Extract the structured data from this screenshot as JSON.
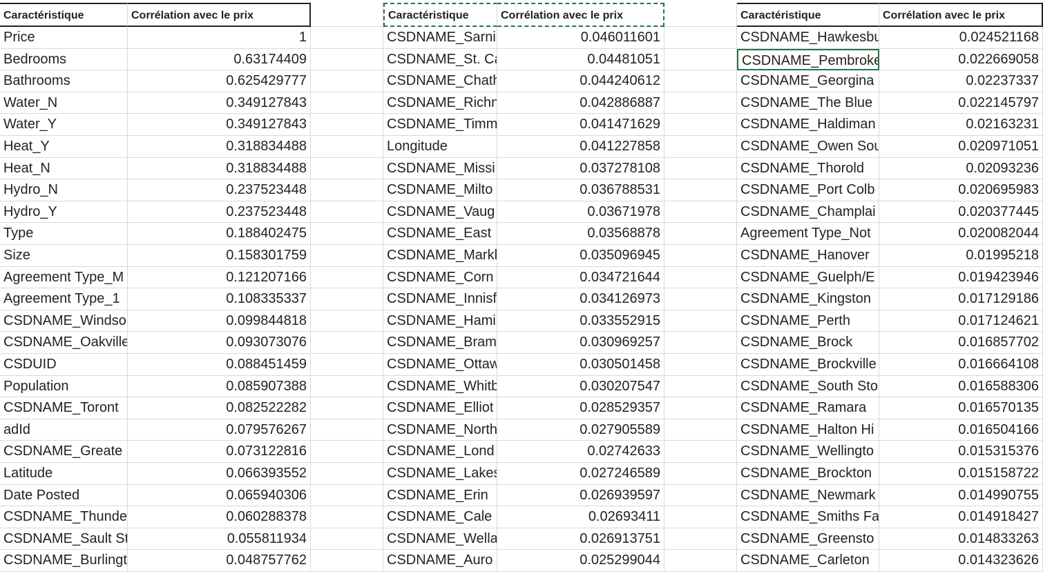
{
  "tables": [
    {
      "header": [
        "Caractéristique",
        "Corrélation avec le prix"
      ],
      "rows": [
        [
          "Price",
          "1"
        ],
        [
          "Bedrooms",
          "0.63174409"
        ],
        [
          "Bathrooms",
          "0.625429777"
        ],
        [
          "Water_N",
          "0.349127843"
        ],
        [
          "Water_Y",
          "0.349127843"
        ],
        [
          "Heat_Y",
          "0.318834488"
        ],
        [
          "Heat_N",
          "0.318834488"
        ],
        [
          "Hydro_N",
          "0.237523448"
        ],
        [
          "Hydro_Y",
          "0.237523448"
        ],
        [
          "Type",
          "0.188402475"
        ],
        [
          "Size",
          "0.158301759"
        ],
        [
          "Agreement Type_M",
          "0.121207166"
        ],
        [
          "Agreement Type_1",
          "0.108335337"
        ],
        [
          "CSDNAME_Windso",
          "0.099844818"
        ],
        [
          "CSDNAME_Oakville",
          "0.093073076"
        ],
        [
          "CSDUID",
          "0.088451459"
        ],
        [
          "Population",
          "0.085907388"
        ],
        [
          "CSDNAME_Toront",
          "0.082522282"
        ],
        [
          "adId",
          "0.079576267"
        ],
        [
          "CSDNAME_Greate",
          "0.073122816"
        ],
        [
          "Latitude",
          "0.066393552"
        ],
        [
          "Date Posted",
          "0.065940306"
        ],
        [
          "CSDNAME_Thunde",
          "0.060288378"
        ],
        [
          "CSDNAME_Sault St",
          "0.055811934"
        ],
        [
          "CSDNAME_Burlingt",
          "0.048757762"
        ]
      ]
    },
    {
      "header": [
        "Caractéristique",
        "Corrélation avec le prix"
      ],
      "rows": [
        [
          "CSDNAME_Sarni",
          "0.046011601"
        ],
        [
          "CSDNAME_St. Ca",
          "0.04481051"
        ],
        [
          "CSDNAME_Chath",
          "0.044240612"
        ],
        [
          "CSDNAME_Richn",
          "0.042886887"
        ],
        [
          "CSDNAME_Timm",
          "0.041471629"
        ],
        [
          "Longitude",
          "0.041227858"
        ],
        [
          "CSDNAME_Missi",
          "0.037278108"
        ],
        [
          "CSDNAME_Milto",
          "0.036788531"
        ],
        [
          "CSDNAME_Vaug",
          "0.03671978"
        ],
        [
          "CSDNAME_East",
          "0.03568878"
        ],
        [
          "CSDNAME_Markl",
          "0.035096945"
        ],
        [
          "CSDNAME_Corn",
          "0.034721644"
        ],
        [
          "CSDNAME_Innisf",
          "0.034126973"
        ],
        [
          "CSDNAME_Hami",
          "0.033552915"
        ],
        [
          "CSDNAME_Bram",
          "0.030969257"
        ],
        [
          "CSDNAME_Ottaw",
          "0.030501458"
        ],
        [
          "CSDNAME_Whitb",
          "0.030207547"
        ],
        [
          "CSDNAME_Elliot",
          "0.028529357"
        ],
        [
          "CSDNAME_North",
          "0.027905589"
        ],
        [
          "CSDNAME_Lond",
          "0.02742633"
        ],
        [
          "CSDNAME_Lakes",
          "0.027246589"
        ],
        [
          "CSDNAME_Erin",
          "0.026939597"
        ],
        [
          "CSDNAME_Cale",
          "0.02693411"
        ],
        [
          "CSDNAME_Wella",
          "0.026913751"
        ],
        [
          "CSDNAME_Auro",
          "0.025299044"
        ]
      ]
    },
    {
      "header": [
        "Caractéristique",
        "Corrélation avec le prix"
      ],
      "rows": [
        [
          "CSDNAME_Hawkesbu",
          "0.024521168"
        ],
        [
          "CSDNAME_Pembroke",
          "0.022669058"
        ],
        [
          "CSDNAME_Georgina",
          "0.02237337"
        ],
        [
          "CSDNAME_The Blue",
          "0.022145797"
        ],
        [
          "CSDNAME_Haldiman",
          "0.02163231"
        ],
        [
          "CSDNAME_Owen Sou",
          "0.020971051"
        ],
        [
          "CSDNAME_Thorold",
          "0.02093236"
        ],
        [
          "CSDNAME_Port Colb",
          "0.020695983"
        ],
        [
          "CSDNAME_Champlai",
          "0.020377445"
        ],
        [
          "Agreement Type_Not",
          "0.020082044"
        ],
        [
          "CSDNAME_Hanover",
          "0.01995218"
        ],
        [
          "CSDNAME_Guelph/E",
          "0.019423946"
        ],
        [
          "CSDNAME_Kingston",
          "0.017129186"
        ],
        [
          "CSDNAME_Perth",
          "0.017124621"
        ],
        [
          "CSDNAME_Brock",
          "0.016857702"
        ],
        [
          "CSDNAME_Brockville",
          "0.016664108"
        ],
        [
          "CSDNAME_South Sto",
          "0.016588306"
        ],
        [
          "CSDNAME_Ramara",
          "0.016570135"
        ],
        [
          "CSDNAME_Halton Hi",
          "0.016504166"
        ],
        [
          "CSDNAME_Wellingto",
          "0.015315376"
        ],
        [
          "CSDNAME_Brockton",
          "0.015158722"
        ],
        [
          "CSDNAME_Newmark",
          "0.014990755"
        ],
        [
          "CSDNAME_Smiths Fa",
          "0.014918427"
        ],
        [
          "CSDNAME_Greensto",
          "0.014833263"
        ],
        [
          "CSDNAME_Carleton",
          "0.014323626"
        ]
      ]
    }
  ]
}
